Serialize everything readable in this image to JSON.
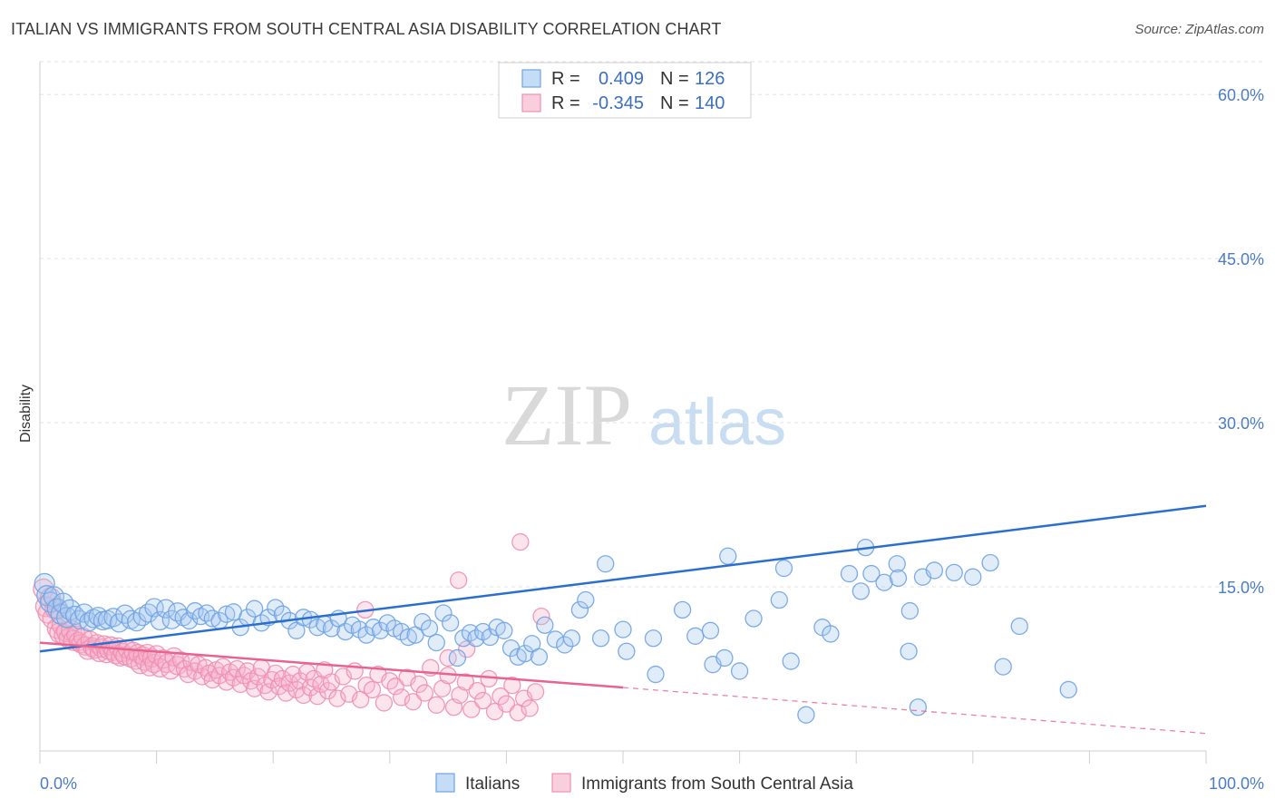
{
  "title": "ITALIAN VS IMMIGRANTS FROM SOUTH CENTRAL ASIA DISABILITY CORRELATION CHART",
  "source": "Source: ZipAtlas.com",
  "watermark": {
    "left": "ZIP",
    "right": "atlas"
  },
  "chart_data": {
    "type": "scatter",
    "ylabel": "Disability",
    "xlim": [
      0,
      100
    ],
    "ylim": [
      0,
      63
    ],
    "x_tick_labels": [
      "0.0%",
      "100.0%"
    ],
    "y_ticks": [
      15,
      30,
      45,
      60
    ],
    "y_tick_labels": [
      "15.0%",
      "30.0%",
      "45.0%",
      "60.0%"
    ],
    "grid": true,
    "legend_position": "top-center",
    "colors": {
      "Italians": "#6ea3e6",
      "Immigrants from South Central Asia": "#f08fb0",
      "blue_line": "#2a6fd0",
      "pink_line": "#e8638f"
    },
    "stats": [
      {
        "series": "Italians",
        "r_label": "R =",
        "r": "0.409",
        "n_label": "N =",
        "n": "126"
      },
      {
        "series": "Immigrants from South Central Asia",
        "r_label": "R =",
        "r": "-0.345",
        "n_label": "N =",
        "n": "140"
      }
    ],
    "series": [
      {
        "name": "Italians",
        "trend": {
          "x": [
            0,
            100
          ],
          "y": [
            9.1,
            22.4
          ]
        },
        "points": [
          [
            0.4,
            15.3
          ],
          [
            0.6,
            14.2
          ],
          [
            0.9,
            13.6
          ],
          [
            1.2,
            14.1
          ],
          [
            1.5,
            13.0
          ],
          [
            1.8,
            12.5
          ],
          [
            2.0,
            13.5
          ],
          [
            2.3,
            12.2
          ],
          [
            2.6,
            12.9
          ],
          [
            3.0,
            12.4
          ],
          [
            3.4,
            12.0
          ],
          [
            3.8,
            12.6
          ],
          [
            4.2,
            11.8
          ],
          [
            4.6,
            12.1
          ],
          [
            5.0,
            12.3
          ],
          [
            5.4,
            11.9
          ],
          [
            5.8,
            12.0
          ],
          [
            6.3,
            12.2
          ],
          [
            6.8,
            11.7
          ],
          [
            7.3,
            12.5
          ],
          [
            7.8,
            12.0
          ],
          [
            8.3,
            11.8
          ],
          [
            8.8,
            12.3
          ],
          [
            9.3,
            12.6
          ],
          [
            9.8,
            13.1
          ],
          [
            10.3,
            11.9
          ],
          [
            10.8,
            13.0
          ],
          [
            11.3,
            12.0
          ],
          [
            11.8,
            12.7
          ],
          [
            12.3,
            12.2
          ],
          [
            12.8,
            11.9
          ],
          [
            13.3,
            12.8
          ],
          [
            13.8,
            12.3
          ],
          [
            14.3,
            12.6
          ],
          [
            14.8,
            12.1
          ],
          [
            15.4,
            11.9
          ],
          [
            16.0,
            12.5
          ],
          [
            16.6,
            12.7
          ],
          [
            17.2,
            11.3
          ],
          [
            17.8,
            12.2
          ],
          [
            18.4,
            13.0
          ],
          [
            19.0,
            11.7
          ],
          [
            19.6,
            12.2
          ],
          [
            20.2,
            13.1
          ],
          [
            20.8,
            12.5
          ],
          [
            21.4,
            11.9
          ],
          [
            22.0,
            11.0
          ],
          [
            22.6,
            12.2
          ],
          [
            23.2,
            12.0
          ],
          [
            23.8,
            11.3
          ],
          [
            24.4,
            11.6
          ],
          [
            25.0,
            11.2
          ],
          [
            25.6,
            12.1
          ],
          [
            26.2,
            10.9
          ],
          [
            26.8,
            11.5
          ],
          [
            27.4,
            11.1
          ],
          [
            28.0,
            10.6
          ],
          [
            28.6,
            11.3
          ],
          [
            29.2,
            11.0
          ],
          [
            29.8,
            11.7
          ],
          [
            30.4,
            11.2
          ],
          [
            31.0,
            10.9
          ],
          [
            31.6,
            10.4
          ],
          [
            32.2,
            10.6
          ],
          [
            32.8,
            11.8
          ],
          [
            33.4,
            11.2
          ],
          [
            34.0,
            9.9
          ],
          [
            34.6,
            12.6
          ],
          [
            35.2,
            11.7
          ],
          [
            35.8,
            8.5
          ],
          [
            36.3,
            10.3
          ],
          [
            36.9,
            10.8
          ],
          [
            37.4,
            10.3
          ],
          [
            38.0,
            10.9
          ],
          [
            38.6,
            10.4
          ],
          [
            39.2,
            11.3
          ],
          [
            39.8,
            11.0
          ],
          [
            40.4,
            9.4
          ],
          [
            41.0,
            8.6
          ],
          [
            41.6,
            8.9
          ],
          [
            42.2,
            9.8
          ],
          [
            42.8,
            8.6
          ],
          [
            43.3,
            11.5
          ],
          [
            44.2,
            10.2
          ],
          [
            45.0,
            9.7
          ],
          [
            45.6,
            10.3
          ],
          [
            46.3,
            12.9
          ],
          [
            46.8,
            13.8
          ],
          [
            48.1,
            10.3
          ],
          [
            48.5,
            17.1
          ],
          [
            50.0,
            11.1
          ],
          [
            50.3,
            9.1
          ],
          [
            52.6,
            10.3
          ],
          [
            52.8,
            7.0
          ],
          [
            55.1,
            12.9
          ],
          [
            56.2,
            10.5
          ],
          [
            57.5,
            11.0
          ],
          [
            57.7,
            7.9
          ],
          [
            58.7,
            8.5
          ],
          [
            59.0,
            17.8
          ],
          [
            60.0,
            7.3
          ],
          [
            61.2,
            12.1
          ],
          [
            63.4,
            13.8
          ],
          [
            63.8,
            16.7
          ],
          [
            64.4,
            8.2
          ],
          [
            65.7,
            3.3
          ],
          [
            67.1,
            11.3
          ],
          [
            67.8,
            10.7
          ],
          [
            69.4,
            16.2
          ],
          [
            70.4,
            14.6
          ],
          [
            70.8,
            18.6
          ],
          [
            71.3,
            16.2
          ],
          [
            72.4,
            15.4
          ],
          [
            73.5,
            17.1
          ],
          [
            73.6,
            15.8
          ],
          [
            74.6,
            12.8
          ],
          [
            75.3,
            4.0
          ],
          [
            75.7,
            15.9
          ],
          [
            74.5,
            9.1
          ],
          [
            76.7,
            16.5
          ],
          [
            78.4,
            16.3
          ],
          [
            80.0,
            15.9
          ],
          [
            81.5,
            17.2
          ],
          [
            82.6,
            7.7
          ],
          [
            88.2,
            5.6
          ],
          [
            84.0,
            11.4
          ]
        ]
      },
      {
        "name": "Immigrants from South Central Asia",
        "trend": {
          "x": [
            0,
            50
          ],
          "y": [
            9.9,
            5.8
          ]
        },
        "trend_ext": {
          "x": [
            50,
            100
          ],
          "y": [
            5.8,
            1.6
          ]
        },
        "points": [
          [
            0.3,
            14.8
          ],
          [
            0.5,
            13.2
          ],
          [
            0.7,
            12.6
          ],
          [
            0.9,
            14.0
          ],
          [
            1.1,
            12.1
          ],
          [
            1.3,
            13.0
          ],
          [
            1.5,
            11.2
          ],
          [
            1.7,
            10.8
          ],
          [
            1.9,
            11.5
          ],
          [
            2.1,
            10.6
          ],
          [
            2.3,
            10.9
          ],
          [
            2.5,
            10.3
          ],
          [
            2.7,
            11.0
          ],
          [
            2.9,
            10.1
          ],
          [
            3.1,
            10.6
          ],
          [
            3.3,
            10.0
          ],
          [
            3.5,
            9.8
          ],
          [
            3.7,
            10.4
          ],
          [
            3.9,
            9.6
          ],
          [
            4.1,
            9.2
          ],
          [
            4.3,
            10.1
          ],
          [
            4.5,
            9.5
          ],
          [
            4.7,
            9.3
          ],
          [
            4.9,
            9.8
          ],
          [
            5.1,
            9.0
          ],
          [
            5.3,
            9.4
          ],
          [
            5.5,
            9.7
          ],
          [
            5.7,
            8.9
          ],
          [
            5.9,
            9.2
          ],
          [
            6.1,
            9.6
          ],
          [
            6.3,
            9.1
          ],
          [
            6.5,
            8.8
          ],
          [
            6.7,
            9.5
          ],
          [
            6.9,
            8.6
          ],
          [
            7.1,
            9.0
          ],
          [
            7.3,
            8.7
          ],
          [
            7.5,
            9.3
          ],
          [
            7.8,
            8.5
          ],
          [
            8.0,
            9.1
          ],
          [
            8.2,
            8.3
          ],
          [
            8.4,
            8.9
          ],
          [
            8.6,
            7.9
          ],
          [
            8.8,
            8.7
          ],
          [
            9.0,
            8.2
          ],
          [
            9.2,
            8.9
          ],
          [
            9.4,
            7.7
          ],
          [
            9.6,
            8.5
          ],
          [
            9.8,
            8.0
          ],
          [
            10.0,
            8.8
          ],
          [
            10.3,
            7.6
          ],
          [
            10.6,
            8.4
          ],
          [
            10.9,
            8.0
          ],
          [
            11.2,
            7.4
          ],
          [
            11.5,
            8.6
          ],
          [
            11.8,
            7.8
          ],
          [
            12.1,
            8.3
          ],
          [
            12.4,
            7.5
          ],
          [
            12.7,
            7.0
          ],
          [
            13.0,
            8.1
          ],
          [
            13.3,
            7.3
          ],
          [
            13.6,
            7.9
          ],
          [
            13.9,
            6.8
          ],
          [
            14.2,
            7.6
          ],
          [
            14.5,
            7.1
          ],
          [
            14.8,
            6.5
          ],
          [
            15.1,
            7.4
          ],
          [
            15.4,
            6.9
          ],
          [
            15.7,
            7.7
          ],
          [
            16.0,
            6.3
          ],
          [
            16.3,
            7.2
          ],
          [
            16.6,
            6.7
          ],
          [
            16.9,
            7.5
          ],
          [
            17.2,
            6.1
          ],
          [
            17.5,
            6.9
          ],
          [
            17.8,
            7.3
          ],
          [
            18.1,
            6.4
          ],
          [
            18.4,
            5.7
          ],
          [
            18.7,
            6.8
          ],
          [
            19.0,
            7.6
          ],
          [
            19.3,
            6.0
          ],
          [
            19.6,
            5.4
          ],
          [
            19.9,
            6.5
          ],
          [
            20.2,
            7.1
          ],
          [
            20.5,
            5.9
          ],
          [
            20.8,
            6.6
          ],
          [
            21.1,
            5.3
          ],
          [
            21.4,
            6.2
          ],
          [
            21.7,
            7.0
          ],
          [
            22.0,
            5.6
          ],
          [
            22.3,
            6.4
          ],
          [
            22.6,
            5.1
          ],
          [
            22.9,
            7.2
          ],
          [
            23.2,
            5.8
          ],
          [
            23.5,
            6.6
          ],
          [
            23.8,
            5.0
          ],
          [
            24.1,
            6.1
          ],
          [
            24.4,
            7.4
          ],
          [
            24.7,
            5.5
          ],
          [
            25.0,
            6.3
          ],
          [
            25.5,
            4.8
          ],
          [
            26.0,
            6.8
          ],
          [
            26.5,
            5.2
          ],
          [
            27.0,
            7.3
          ],
          [
            27.5,
            4.7
          ],
          [
            28.0,
            6.0
          ],
          [
            28.5,
            5.6
          ],
          [
            29.0,
            7.0
          ],
          [
            29.5,
            4.4
          ],
          [
            30.0,
            6.4
          ],
          [
            30.5,
            5.9
          ],
          [
            31.0,
            4.9
          ],
          [
            31.5,
            6.7
          ],
          [
            32.0,
            4.5
          ],
          [
            32.5,
            6.1
          ],
          [
            33.0,
            5.3
          ],
          [
            33.5,
            7.6
          ],
          [
            34.0,
            4.2
          ],
          [
            34.5,
            5.7
          ],
          [
            35.0,
            6.9
          ],
          [
            35.5,
            4.0
          ],
          [
            36.0,
            5.1
          ],
          [
            36.5,
            6.3
          ],
          [
            37.0,
            3.8
          ],
          [
            37.5,
            5.5
          ],
          [
            38.0,
            4.6
          ],
          [
            38.5,
            6.6
          ],
          [
            39.0,
            3.6
          ],
          [
            39.5,
            5.0
          ],
          [
            40.0,
            4.3
          ],
          [
            40.5,
            6.0
          ],
          [
            41.0,
            3.5
          ],
          [
            41.5,
            4.8
          ],
          [
            42.0,
            3.9
          ],
          [
            42.5,
            5.4
          ],
          [
            35.9,
            15.6
          ],
          [
            36.6,
            9.3
          ],
          [
            35.0,
            8.5
          ],
          [
            41.2,
            19.1
          ],
          [
            27.9,
            12.9
          ],
          [
            43.0,
            12.3
          ]
        ]
      }
    ]
  },
  "legend": {
    "r_label": "R =",
    "n_label": "N =",
    "rows": [
      {
        "r": "0.409",
        "n": "126"
      },
      {
        "r": "-0.345",
        "n": "140"
      }
    ]
  },
  "bottom_legend": {
    "items": [
      {
        "label": "Italians"
      },
      {
        "label": "Immigrants from South Central Asia"
      }
    ]
  }
}
